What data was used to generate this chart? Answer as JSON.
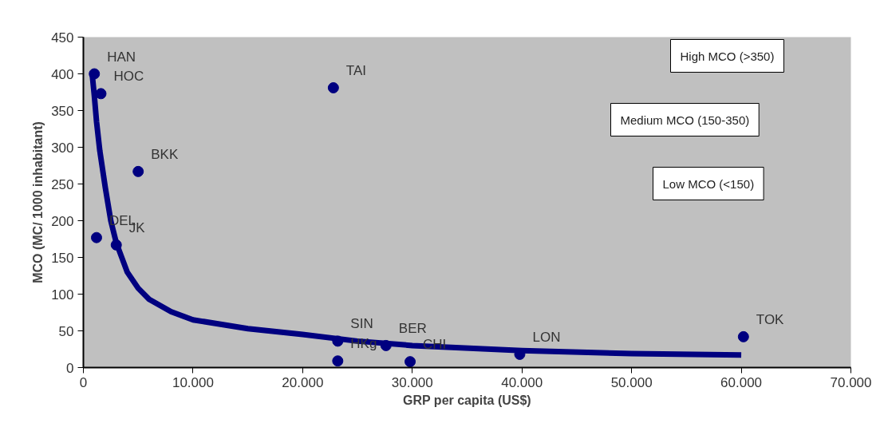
{
  "chart_data": {
    "type": "scatter",
    "xlabel": "GRP per capita (US$)",
    "ylabel": "MCO (MC/ 1000 inhabitant)",
    "series": [
      {
        "marker": "circle",
        "color": "#000080",
        "x": [
          1000,
          1600,
          22800,
          5000,
          1200,
          3000,
          23200,
          23200,
          27600,
          29800,
          39800,
          60200
        ],
        "values": [
          400,
          373,
          381,
          267,
          177,
          167,
          36,
          9,
          30,
          8,
          18,
          42
        ]
      },
      {
        "type": "line",
        "marker": "none",
        "color": "#000080",
        "x": [
          800,
          1000,
          1200,
          1500,
          2000,
          2500,
          3000,
          4000,
          5000,
          6000,
          8000,
          10000,
          15000,
          20000,
          25000,
          30000,
          40000,
          50000,
          60000
        ],
        "values": [
          400,
          370,
          335,
          295,
          245,
          200,
          170,
          130,
          108,
          93,
          76,
          65,
          53,
          45,
          36,
          30,
          23,
          19,
          17
        ]
      }
    ],
    "annotations": [
      {
        "text": "HAN",
        "x": 1000,
        "y": 400
      },
      {
        "text": "HOC",
        "x": 1600,
        "y": 373
      },
      {
        "text": "TAI",
        "x": 22800,
        "y": 381
      },
      {
        "text": "BKK",
        "x": 5000,
        "y": 267
      },
      {
        "text": "DEL",
        "x": 1200,
        "y": 177
      },
      {
        "text": "JK",
        "x": 3000,
        "y": 167
      },
      {
        "text": "SIN",
        "x": 23200,
        "y": 36
      },
      {
        "text": "HKg",
        "x": 23200,
        "y": 9
      },
      {
        "text": "BER",
        "x": 27600,
        "y": 30
      },
      {
        "text": "CHI",
        "x": 29800,
        "y": 8
      },
      {
        "text": "LON",
        "x": 39800,
        "y": 18
      },
      {
        "text": "TOK",
        "x": 60200,
        "y": 42
      },
      "High MCO (>350)",
      "Medium MCO (150-350)",
      "Low MCO (<150)"
    ],
    "xlim": [
      0,
      70000
    ],
    "ylim": [
      0,
      450
    ],
    "xticks": [
      0,
      {
        "value": 10000,
        "label": "10.000"
      },
      {
        "value": 20000,
        "label": "20.000"
      },
      {
        "value": 30000,
        "label": "30.000"
      },
      {
        "value": 40000,
        "label": "40.000"
      },
      {
        "value": 50000,
        "label": "50.000"
      },
      {
        "value": 60000,
        "label": "60.000"
      },
      {
        "value": 70000,
        "label": "70.000"
      }
    ],
    "yticks": [
      0,
      50,
      100,
      150,
      200,
      250,
      300,
      350,
      400,
      450
    ],
    "grid": false,
    "line_style": "solid"
  }
}
